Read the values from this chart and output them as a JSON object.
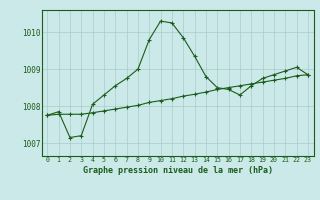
{
  "title": "Graphe pression niveau de la mer (hPa)",
  "background_color": "#cce9e9",
  "line_color": "#1a5c1a",
  "grid_color_major": "#aacccc",
  "x_ticks": [
    0,
    1,
    2,
    3,
    4,
    5,
    6,
    7,
    8,
    9,
    10,
    11,
    12,
    13,
    14,
    15,
    16,
    17,
    18,
    19,
    20,
    21,
    22,
    23
  ],
  "y_ticks": [
    1007,
    1008,
    1009,
    1010
  ],
  "ylim": [
    1006.65,
    1010.6
  ],
  "xlim": [
    -0.5,
    23.5
  ],
  "series1": [
    1007.75,
    1007.85,
    1007.15,
    1007.2,
    1008.05,
    1008.3,
    1008.55,
    1008.75,
    1009.0,
    1009.8,
    1010.3,
    1010.25,
    1009.85,
    1009.35,
    1008.8,
    1008.5,
    1008.45,
    1008.3,
    1008.55,
    1008.75,
    1008.85,
    1008.95,
    1009.05,
    1008.85
  ],
  "series2": [
    1007.75,
    1007.78,
    1007.78,
    1007.78,
    1007.82,
    1007.87,
    1007.92,
    1007.97,
    1008.02,
    1008.1,
    1008.15,
    1008.2,
    1008.27,
    1008.32,
    1008.38,
    1008.45,
    1008.5,
    1008.55,
    1008.6,
    1008.65,
    1008.7,
    1008.75,
    1008.82,
    1008.85
  ],
  "figsize": [
    3.2,
    2.0
  ],
  "dpi": 100
}
